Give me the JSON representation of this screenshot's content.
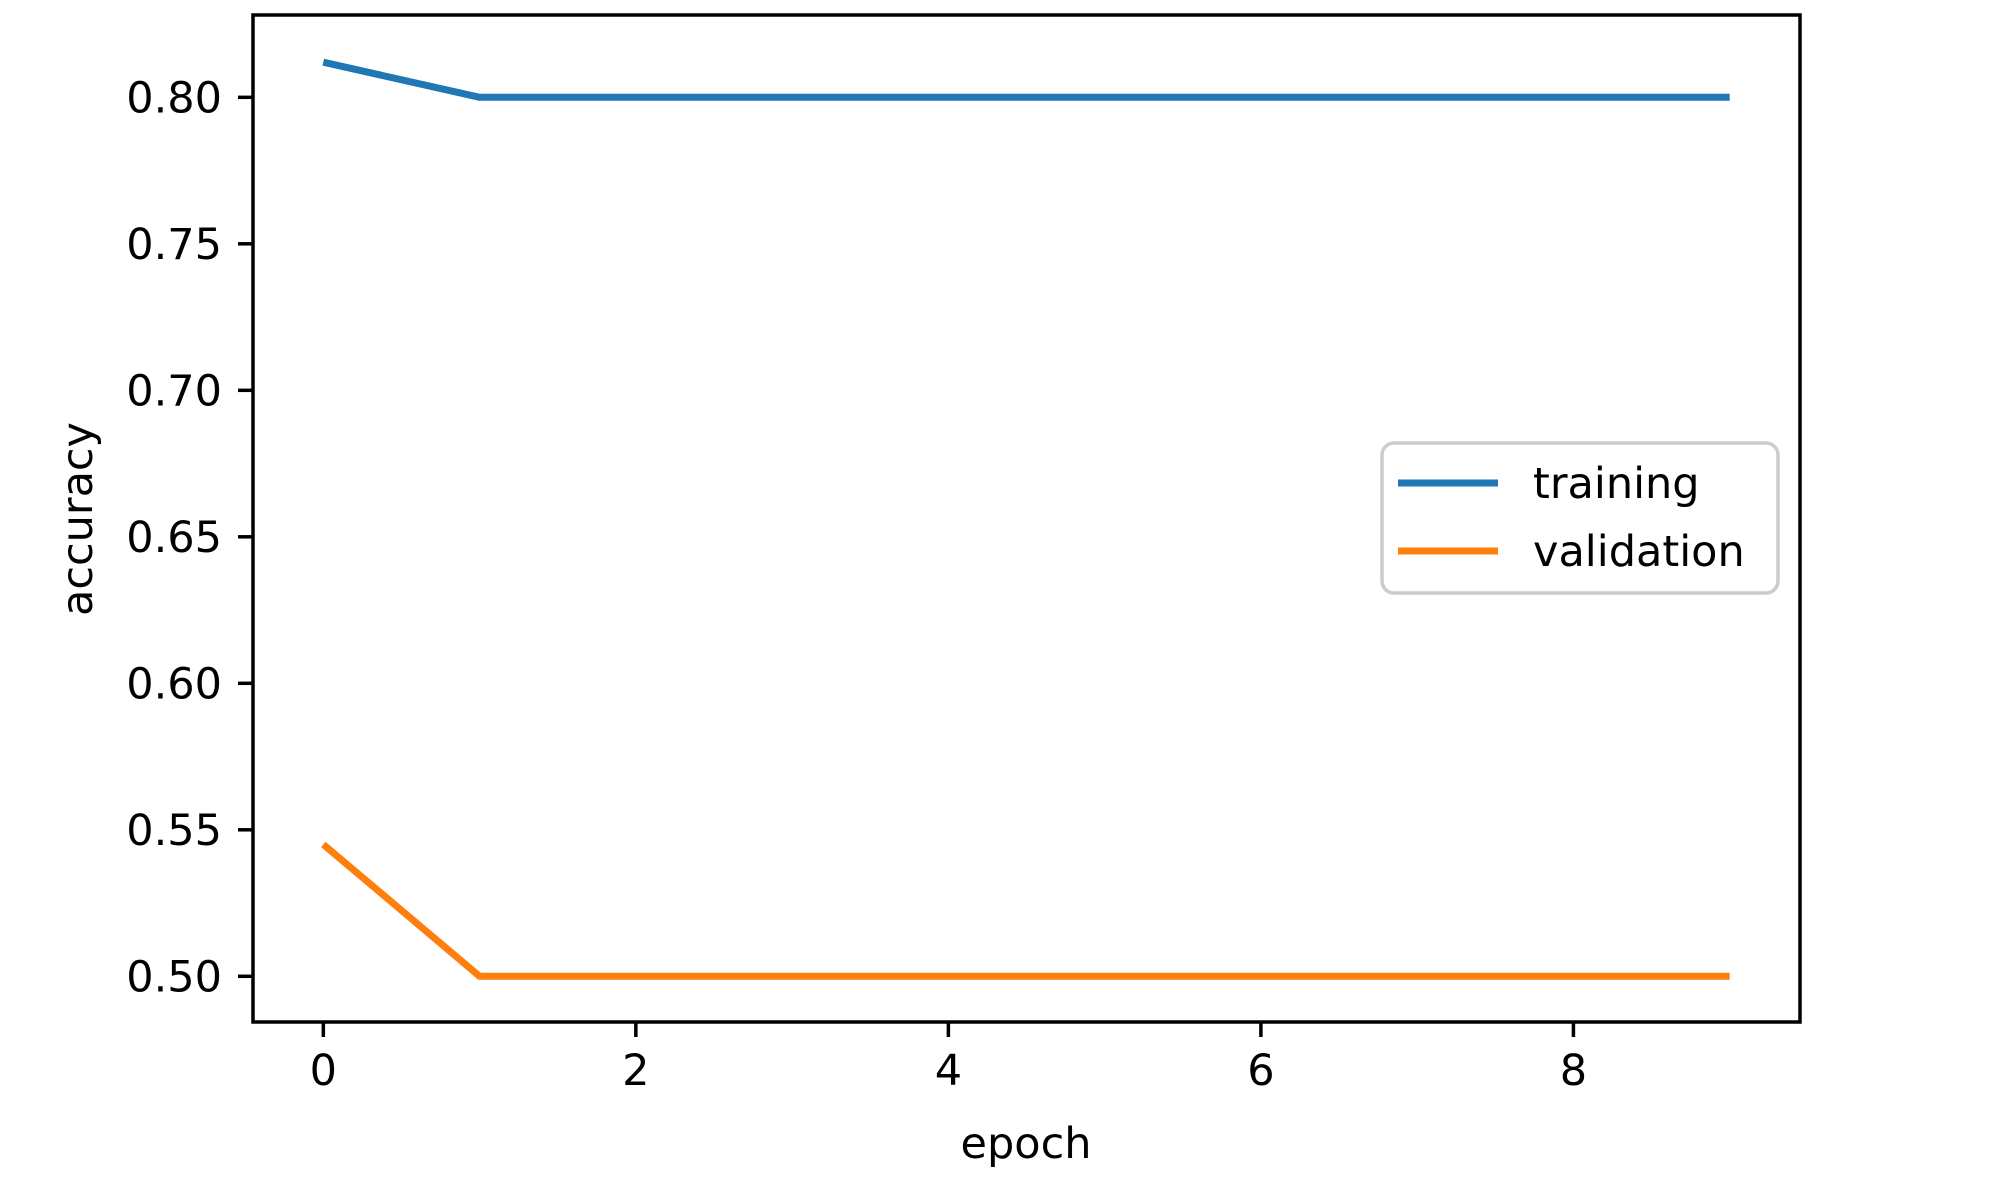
{
  "chart_data": {
    "type": "line",
    "title": "",
    "xlabel": "epoch",
    "ylabel": "accuracy",
    "x": [
      0,
      1,
      2,
      3,
      4,
      5,
      6,
      7,
      8,
      9
    ],
    "series": [
      {
        "name": "training",
        "color": "#1f77b4",
        "values": [
          0.812,
          0.8,
          0.8,
          0.8,
          0.8,
          0.8,
          0.8,
          0.8,
          0.8,
          0.8
        ]
      },
      {
        "name": "validation",
        "color": "#ff7f0e",
        "values": [
          0.545,
          0.5,
          0.5,
          0.5,
          0.5,
          0.5,
          0.5,
          0.5,
          0.5,
          0.5
        ]
      }
    ],
    "xticks": {
      "values": [
        0,
        2,
        4,
        6,
        8
      ],
      "labels": [
        "0",
        "2",
        "4",
        "6",
        "8"
      ]
    },
    "yticks": {
      "values": [
        0.5,
        0.55,
        0.6,
        0.65,
        0.7,
        0.75,
        0.8
      ],
      "labels": [
        "0.50",
        "0.55",
        "0.60",
        "0.65",
        "0.70",
        "0.75",
        "0.80"
      ]
    },
    "xlim": [
      -0.45,
      9.45
    ],
    "ylim": [
      0.4844,
      0.8281
    ],
    "grid": false,
    "legend": {
      "position": "center right",
      "entries": [
        "training",
        "validation"
      ]
    }
  },
  "style": {
    "background": "#ffffff",
    "axis_color": "#000000",
    "text_color": "#000000",
    "legend_border": "#cccccc",
    "legend_fill": "#ffffff"
  }
}
